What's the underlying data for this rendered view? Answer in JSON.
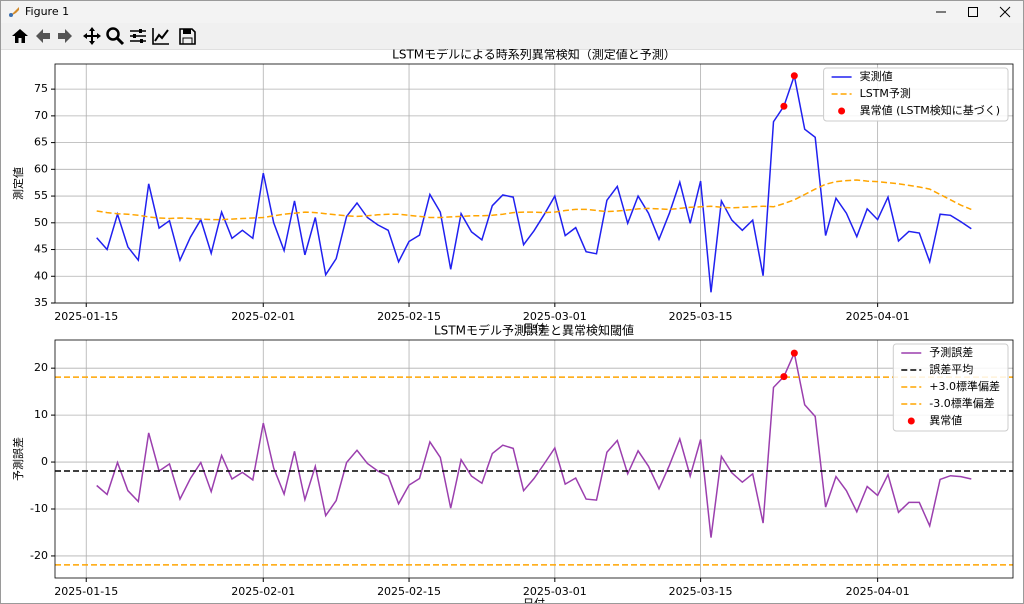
{
  "window": {
    "title": "Figure 1"
  },
  "chart_data": [
    {
      "type": "line",
      "title": "LSTMモデルによる時系列異常検知（測定値と予測）",
      "ylabel": "測定値",
      "xlabel": "日付",
      "x": [
        "2025-01-16",
        "2025-01-17",
        "2025-01-18",
        "2025-01-19",
        "2025-01-20",
        "2025-01-21",
        "2025-01-22",
        "2025-01-23",
        "2025-01-24",
        "2025-01-25",
        "2025-01-26",
        "2025-01-27",
        "2025-01-28",
        "2025-01-29",
        "2025-01-30",
        "2025-01-31",
        "2025-02-01",
        "2025-02-02",
        "2025-02-03",
        "2025-02-04",
        "2025-02-05",
        "2025-02-06",
        "2025-02-07",
        "2025-02-08",
        "2025-02-09",
        "2025-02-10",
        "2025-02-11",
        "2025-02-12",
        "2025-02-13",
        "2025-02-14",
        "2025-02-15",
        "2025-02-16",
        "2025-02-17",
        "2025-02-18",
        "2025-02-19",
        "2025-02-20",
        "2025-02-21",
        "2025-02-22",
        "2025-02-23",
        "2025-02-24",
        "2025-02-25",
        "2025-02-26",
        "2025-02-27",
        "2025-02-28",
        "2025-03-01",
        "2025-03-02",
        "2025-03-03",
        "2025-03-04",
        "2025-03-05",
        "2025-03-06",
        "2025-03-07",
        "2025-03-08",
        "2025-03-09",
        "2025-03-10",
        "2025-03-11",
        "2025-03-12",
        "2025-03-13",
        "2025-03-14",
        "2025-03-15",
        "2025-03-16",
        "2025-03-17",
        "2025-03-18",
        "2025-03-19",
        "2025-03-20",
        "2025-03-21",
        "2025-03-22",
        "2025-03-23",
        "2025-03-24",
        "2025-03-25",
        "2025-03-26",
        "2025-03-27",
        "2025-03-28",
        "2025-03-29",
        "2025-03-30",
        "2025-03-31",
        "2025-04-01",
        "2025-04-02",
        "2025-04-03",
        "2025-04-04",
        "2025-04-05",
        "2025-04-06",
        "2025-04-07",
        "2025-04-08",
        "2025-04-09",
        "2025-04-10"
      ],
      "series": [
        {
          "name": "実測値",
          "kind": "line",
          "color": "#2020f0",
          "values": [
            47.2,
            45,
            51.6,
            45.5,
            43,
            57.3,
            49,
            50.4,
            43,
            47.3,
            50.6,
            44.3,
            52,
            47.1,
            48.6,
            47.1,
            59.3,
            50,
            44.8,
            54.1,
            44,
            51,
            40.3,
            43.3,
            51.2,
            53.7,
            51,
            49.6,
            48.6,
            42.7,
            46.5,
            47.7,
            55.3,
            52,
            41.3,
            51.7,
            48.3,
            46.8,
            53.2,
            55.2,
            54.8,
            45.9,
            48.5,
            51.6,
            55,
            47.6,
            49.1,
            44.6,
            44.2,
            54.2,
            56.8,
            49.9,
            55,
            51.8,
            46.9,
            51.8,
            57.6,
            49.9,
            57.8,
            37,
            54.1,
            50.5,
            48.6,
            50.5,
            40.1,
            68.9,
            71.8,
            77.5,
            67.5,
            66,
            47.6,
            54.6,
            51.8,
            47.4,
            52.6,
            50.6,
            54.8,
            46.6,
            48.4,
            48.1,
            42.7,
            51.6,
            51.4,
            50.2,
            48.9
          ]
        },
        {
          "name": "LSTM予測",
          "kind": "line",
          "style": "dashed",
          "color": "#ffa500",
          "values": [
            52.2,
            51.9,
            51.7,
            51.6,
            51.4,
            51.1,
            50.9,
            50.8,
            50.9,
            50.8,
            50.7,
            50.6,
            50.6,
            50.7,
            50.8,
            50.9,
            51.0,
            51.3,
            51.6,
            51.8,
            52.0,
            51.9,
            51.7,
            51.5,
            51.3,
            51.2,
            51.3,
            51.5,
            51.6,
            51.6,
            51.4,
            51.2,
            51.0,
            51.0,
            51.1,
            51.2,
            51.3,
            51.3,
            51.4,
            51.6,
            51.9,
            52.0,
            52.0,
            51.9,
            52.0,
            52.3,
            52.5,
            52.5,
            52.3,
            52.1,
            52.2,
            52.4,
            52.6,
            52.7,
            52.6,
            52.5,
            52.7,
            52.9,
            53.0,
            53.1,
            52.9,
            52.8,
            52.9,
            53.0,
            53.1,
            53.0,
            53.6,
            54.3,
            55.3,
            56.3,
            57.2,
            57.7,
            57.9,
            58.0,
            57.8,
            57.7,
            57.5,
            57.3,
            57.0,
            56.7,
            56.3,
            55.3,
            54.3,
            53.3,
            52.5
          ]
        },
        {
          "name": "異常値 (LSTM検知に基づく)",
          "kind": "scatter",
          "color": "#ff0000",
          "x": [
            "2025-03-23",
            "2025-03-24"
          ],
          "values": [
            71.8,
            77.5
          ]
        }
      ],
      "xlim": [
        "2025-01-12",
        "2025-04-14"
      ],
      "xticks": [
        "2025-01-15",
        "2025-02-01",
        "2025-02-15",
        "2025-03-01",
        "2025-03-15",
        "2025-04-01"
      ],
      "ylim": [
        35,
        79.7
      ],
      "yticks": [
        35,
        40,
        45,
        50,
        55,
        60,
        65,
        70,
        75
      ],
      "grid": true,
      "legend": "upper right"
    },
    {
      "type": "line",
      "title": "LSTMモデル予測誤差と異常検知閾値",
      "ylabel": "予測誤差",
      "xlabel": "日付",
      "x": [
        "2025-01-16",
        "2025-01-17",
        "2025-01-18",
        "2025-01-19",
        "2025-01-20",
        "2025-01-21",
        "2025-01-22",
        "2025-01-23",
        "2025-01-24",
        "2025-01-25",
        "2025-01-26",
        "2025-01-27",
        "2025-01-28",
        "2025-01-29",
        "2025-01-30",
        "2025-01-31",
        "2025-02-01",
        "2025-02-02",
        "2025-02-03",
        "2025-02-04",
        "2025-02-05",
        "2025-02-06",
        "2025-02-07",
        "2025-02-08",
        "2025-02-09",
        "2025-02-10",
        "2025-02-11",
        "2025-02-12",
        "2025-02-13",
        "2025-02-14",
        "2025-02-15",
        "2025-02-16",
        "2025-02-17",
        "2025-02-18",
        "2025-02-19",
        "2025-02-20",
        "2025-02-21",
        "2025-02-22",
        "2025-02-23",
        "2025-02-24",
        "2025-02-25",
        "2025-02-26",
        "2025-02-27",
        "2025-02-28",
        "2025-03-01",
        "2025-03-02",
        "2025-03-03",
        "2025-03-04",
        "2025-03-05",
        "2025-03-06",
        "2025-03-07",
        "2025-03-08",
        "2025-03-09",
        "2025-03-10",
        "2025-03-11",
        "2025-03-12",
        "2025-03-13",
        "2025-03-14",
        "2025-03-15",
        "2025-03-16",
        "2025-03-17",
        "2025-03-18",
        "2025-03-19",
        "2025-03-20",
        "2025-03-21",
        "2025-03-22",
        "2025-03-23",
        "2025-03-24",
        "2025-03-25",
        "2025-03-26",
        "2025-03-27",
        "2025-03-28",
        "2025-03-29",
        "2025-03-30",
        "2025-03-31",
        "2025-04-01",
        "2025-04-02",
        "2025-04-03",
        "2025-04-04",
        "2025-04-05",
        "2025-04-06",
        "2025-04-07",
        "2025-04-08",
        "2025-04-09",
        "2025-04-10"
      ],
      "series": [
        {
          "name": "予測誤差",
          "kind": "line",
          "color": "#9b3fae",
          "values": [
            -5.0,
            -6.9,
            -0.1,
            -6.1,
            -8.4,
            6.2,
            -1.9,
            -0.4,
            -7.9,
            -3.5,
            -0.1,
            -6.3,
            1.4,
            -3.6,
            -2.2,
            -3.8,
            8.3,
            -1.3,
            -6.8,
            2.3,
            -8.0,
            -0.9,
            -11.4,
            -8.2,
            -0.1,
            2.5,
            -0.3,
            -1.9,
            -3.0,
            -8.9,
            -4.9,
            -3.5,
            4.3,
            1.0,
            -9.8,
            0.5,
            -3.0,
            -4.5,
            1.8,
            3.6,
            2.9,
            -6.1,
            -3.5,
            -0.3,
            3.0,
            -4.7,
            -3.4,
            -7.9,
            -8.1,
            2.1,
            4.6,
            -2.5,
            2.4,
            -0.9,
            -5.7,
            -0.7,
            4.9,
            -3.0,
            4.8,
            -16.1,
            1.2,
            -2.3,
            -4.3,
            -2.5,
            -13.0,
            15.9,
            18.2,
            23.2,
            12.2,
            9.7,
            -9.6,
            -3.1,
            -6.1,
            -10.6,
            -5.2,
            -7.1,
            -2.7,
            -10.7,
            -8.6,
            -8.6,
            -13.6,
            -3.7,
            -2.9,
            -3.1,
            -3.6
          ]
        },
        {
          "name": "誤差平均",
          "kind": "hline",
          "style": "dashed",
          "color": "#000000",
          "value": -1.9
        },
        {
          "name": "+3.0標準偏差",
          "kind": "hline",
          "style": "dashed",
          "color": "#ffa500",
          "value": 18.1
        },
        {
          "name": "-3.0標準偏差",
          "kind": "hline",
          "style": "dashed",
          "color": "#ffa500",
          "value": -21.9
        },
        {
          "name": "異常値",
          "kind": "scatter",
          "color": "#ff0000",
          "x": [
            "2025-03-23",
            "2025-03-24"
          ],
          "values": [
            18.2,
            23.2
          ]
        }
      ],
      "xlim": [
        "2025-01-12",
        "2025-04-14"
      ],
      "xticks": [
        "2025-01-15",
        "2025-02-01",
        "2025-02-15",
        "2025-03-01",
        "2025-03-15",
        "2025-04-01"
      ],
      "ylim": [
        -24.7,
        26
      ],
      "yticks": [
        -20,
        -10,
        0,
        10,
        20
      ],
      "grid": true,
      "legend": "upper right"
    }
  ]
}
